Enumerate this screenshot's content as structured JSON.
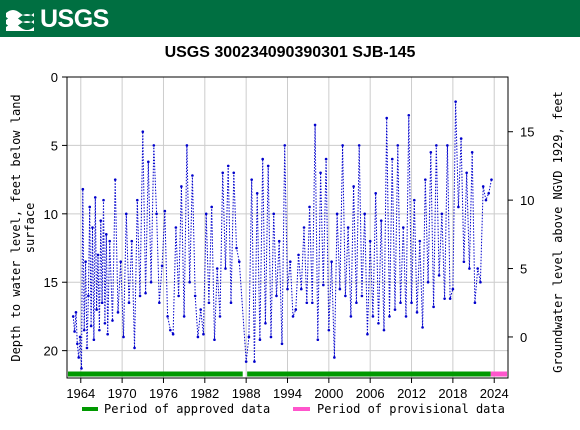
{
  "header": {
    "logo_text": "USGS",
    "title": "USGS 300234090390301 SJB-145"
  },
  "chart_data": {
    "type": "line",
    "title": "USGS 300234090390301 SJB-145",
    "ylabel_left": "Depth to water level, feet below land surface",
    "ylabel_left_lines": [
      "Depth to water level, feet below land",
      "surface"
    ],
    "ylabel_right": "Groundwater level above NGVD 1929, feet",
    "xlim": [
      1962,
      2026
    ],
    "ylim_left": [
      0,
      22
    ],
    "left_ticks": [
      0,
      5,
      10,
      15,
      20
    ],
    "right_ticks": [
      15,
      10,
      5,
      0
    ],
    "right_offset": 19,
    "x_ticks": [
      1964,
      1970,
      1976,
      1982,
      1988,
      1994,
      2000,
      2006,
      2012,
      2018,
      2024
    ],
    "grid": true,
    "series_color": "#0000cc",
    "approved_color": "#009900",
    "provisional_color": "#ff55cc",
    "approved_range": [
      1962.0,
      1987.5
    ],
    "approved_range2": [
      1988.0,
      2023.5
    ],
    "provisional_range": [
      2023.5,
      2025.5
    ],
    "series": [
      {
        "values": [
          [
            1962.9,
            17.5
          ],
          [
            1963.1,
            18.6
          ],
          [
            1963.3,
            17.2
          ],
          [
            1963.5,
            19.5
          ],
          [
            1963.7,
            20.5
          ],
          [
            1963.9,
            19.0
          ],
          [
            1964.1,
            21.3
          ],
          [
            1964.3,
            8.2
          ],
          [
            1964.5,
            18.5
          ],
          [
            1964.7,
            13.5
          ],
          [
            1964.9,
            19.8
          ],
          [
            1965.1,
            16.0
          ],
          [
            1965.3,
            9.5
          ],
          [
            1965.5,
            18.2
          ],
          [
            1965.7,
            11.0
          ],
          [
            1965.9,
            19.2
          ],
          [
            1966.1,
            8.8
          ],
          [
            1966.3,
            17.0
          ],
          [
            1966.5,
            13.0
          ],
          [
            1966.7,
            18.5
          ],
          [
            1966.9,
            10.5
          ],
          [
            1967.1,
            16.5
          ],
          [
            1967.3,
            9.0
          ],
          [
            1967.5,
            18.0
          ],
          [
            1967.7,
            11.5
          ],
          [
            1967.9,
            18.8
          ],
          [
            1968.2,
            12.0
          ],
          [
            1968.6,
            17.8
          ],
          [
            1969.0,
            7.5
          ],
          [
            1969.4,
            17.2
          ],
          [
            1969.8,
            13.5
          ],
          [
            1970.2,
            19.0
          ],
          [
            1970.6,
            10.0
          ],
          [
            1971.0,
            16.5
          ],
          [
            1971.4,
            12.0
          ],
          [
            1971.8,
            19.8
          ],
          [
            1972.2,
            9.0
          ],
          [
            1972.6,
            16.0
          ],
          [
            1973.0,
            4.0
          ],
          [
            1973.4,
            15.8
          ],
          [
            1973.8,
            6.2
          ],
          [
            1974.2,
            15.0
          ],
          [
            1974.6,
            5.0
          ],
          [
            1975.0,
            10.0
          ],
          [
            1975.4,
            16.5
          ],
          [
            1975.8,
            13.8
          ],
          [
            1976.2,
            9.8
          ],
          [
            1976.6,
            17.5
          ],
          [
            1977.0,
            18.5
          ],
          [
            1977.4,
            18.8
          ],
          [
            1977.8,
            11.0
          ],
          [
            1978.2,
            16.0
          ],
          [
            1978.6,
            8.0
          ],
          [
            1979.0,
            17.5
          ],
          [
            1979.4,
            5.0
          ],
          [
            1979.8,
            15.0
          ],
          [
            1980.2,
            7.2
          ],
          [
            1980.6,
            16.0
          ],
          [
            1981.0,
            19.0
          ],
          [
            1981.4,
            17.0
          ],
          [
            1981.8,
            18.8
          ],
          [
            1982.2,
            10.0
          ],
          [
            1982.6,
            16.5
          ],
          [
            1983.0,
            9.5
          ],
          [
            1983.4,
            19.2
          ],
          [
            1983.8,
            14.0
          ],
          [
            1984.2,
            17.5
          ],
          [
            1984.6,
            7.0
          ],
          [
            1985.0,
            14.0
          ],
          [
            1985.4,
            6.5
          ],
          [
            1985.8,
            16.5
          ],
          [
            1986.2,
            7.0
          ],
          [
            1986.6,
            12.5
          ],
          [
            1987.0,
            13.5
          ],
          [
            1988.0,
            20.8
          ],
          [
            1988.4,
            19.0
          ],
          [
            1988.8,
            7.5
          ],
          [
            1989.2,
            20.8
          ],
          [
            1989.6,
            8.5
          ],
          [
            1990.0,
            19.2
          ],
          [
            1990.4,
            6.0
          ],
          [
            1990.8,
            18.0
          ],
          [
            1991.2,
            6.5
          ],
          [
            1991.6,
            19.0
          ],
          [
            1992.0,
            10.0
          ],
          [
            1992.4,
            16.0
          ],
          [
            1992.8,
            12.0
          ],
          [
            1993.2,
            19.5
          ],
          [
            1993.6,
            5.0
          ],
          [
            1994.0,
            15.5
          ],
          [
            1994.4,
            13.5
          ],
          [
            1994.8,
            17.5
          ],
          [
            1995.2,
            17.0
          ],
          [
            1995.6,
            13.0
          ],
          [
            1996.0,
            15.5
          ],
          [
            1996.4,
            11.0
          ],
          [
            1996.8,
            16.5
          ],
          [
            1997.2,
            9.5
          ],
          [
            1997.6,
            16.5
          ],
          [
            1998.0,
            3.5
          ],
          [
            1998.4,
            19.2
          ],
          [
            1998.8,
            7.0
          ],
          [
            1999.2,
            15.2
          ],
          [
            1999.6,
            6.0
          ],
          [
            2000.0,
            18.5
          ],
          [
            2000.4,
            13.5
          ],
          [
            2000.8,
            20.5
          ],
          [
            2001.2,
            10.0
          ],
          [
            2001.6,
            15.5
          ],
          [
            2002.0,
            5.0
          ],
          [
            2002.4,
            16.0
          ],
          [
            2002.8,
            11.0
          ],
          [
            2003.2,
            17.5
          ],
          [
            2003.6,
            8.0
          ],
          [
            2004.0,
            16.5
          ],
          [
            2004.4,
            5.0
          ],
          [
            2004.8,
            16.0
          ],
          [
            2005.2,
            10.0
          ],
          [
            2005.6,
            18.8
          ],
          [
            2006.0,
            12.0
          ],
          [
            2006.4,
            17.5
          ],
          [
            2006.8,
            8.5
          ],
          [
            2007.2,
            18.0
          ],
          [
            2007.6,
            10.5
          ],
          [
            2008.0,
            18.5
          ],
          [
            2008.4,
            3.0
          ],
          [
            2008.8,
            17.5
          ],
          [
            2009.2,
            6.0
          ],
          [
            2009.6,
            17.0
          ],
          [
            2010.0,
            5.0
          ],
          [
            2010.4,
            16.5
          ],
          [
            2010.8,
            11.0
          ],
          [
            2011.2,
            17.5
          ],
          [
            2011.6,
            2.8
          ],
          [
            2012.0,
            16.5
          ],
          [
            2012.4,
            9.0
          ],
          [
            2012.8,
            17.2
          ],
          [
            2013.2,
            12.0
          ],
          [
            2013.6,
            18.3
          ],
          [
            2014.0,
            7.5
          ],
          [
            2014.4,
            15.0
          ],
          [
            2014.8,
            5.5
          ],
          [
            2015.2,
            16.8
          ],
          [
            2015.6,
            5.0
          ],
          [
            2016.0,
            14.5
          ],
          [
            2016.4,
            10.0
          ],
          [
            2016.8,
            16.2
          ],
          [
            2017.2,
            5.0
          ],
          [
            2017.6,
            16.2
          ],
          [
            2018.0,
            15.5
          ],
          [
            2018.4,
            1.8
          ],
          [
            2018.8,
            9.5
          ],
          [
            2019.2,
            4.5
          ],
          [
            2019.6,
            13.5
          ],
          [
            2020.0,
            7.0
          ],
          [
            2020.4,
            14.0
          ],
          [
            2020.8,
            5.5
          ],
          [
            2021.2,
            16.5
          ],
          [
            2021.6,
            14.0
          ],
          [
            2022.0,
            15.0
          ],
          [
            2022.4,
            8.0
          ],
          [
            2022.8,
            9.0
          ],
          [
            2023.2,
            8.5
          ],
          [
            2023.6,
            7.5
          ]
        ]
      }
    ],
    "legend": [
      {
        "label": "Period of approved data",
        "color": "#009900"
      },
      {
        "label": "Period of provisional data",
        "color": "#ff55cc"
      }
    ],
    "legend_position": "bottom"
  }
}
